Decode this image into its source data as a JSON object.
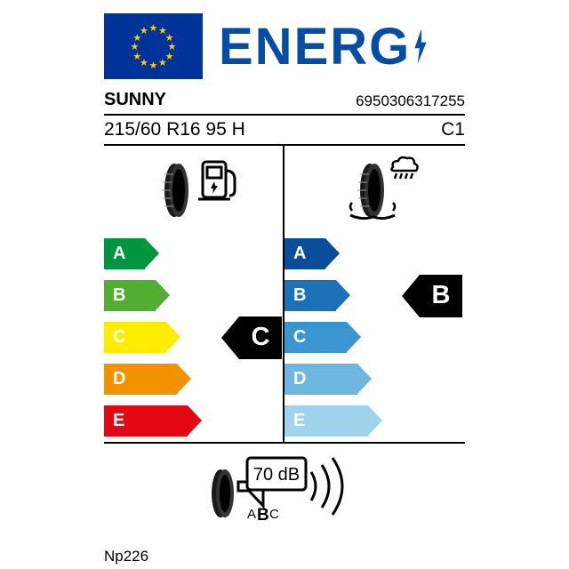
{
  "header": {
    "energy_text": "ENERG",
    "eu_flag_bg": "#003399",
    "star_color": "#ffcc00",
    "text_color": "#034ea2"
  },
  "brand": "SUNNY",
  "ean": "6950306317255",
  "tyre_size": "215/60 R16 95 H",
  "tyre_class": "C1",
  "fuel": {
    "grades": [
      "A",
      "B",
      "C",
      "D",
      "E"
    ],
    "widths": [
      46,
      58,
      70,
      82,
      94
    ],
    "colors": [
      "#009640",
      "#52ae32",
      "#ffed00",
      "#f39200",
      "#e30613"
    ],
    "rating": "C",
    "rating_index": 2
  },
  "wet": {
    "grades": [
      "A",
      "B",
      "C",
      "D",
      "E"
    ],
    "widths": [
      46,
      58,
      70,
      82,
      94
    ],
    "colors": [
      "#0a4e9b",
      "#1c71b8",
      "#3a95d0",
      "#6cb6e0",
      "#a0d4ed"
    ],
    "rating": "B",
    "rating_index": 1
  },
  "noise": {
    "db_value": "70 dB",
    "class_letters": "ABC",
    "selected": "B"
  },
  "model": "Np226",
  "black": "#000000",
  "white": "#ffffff"
}
